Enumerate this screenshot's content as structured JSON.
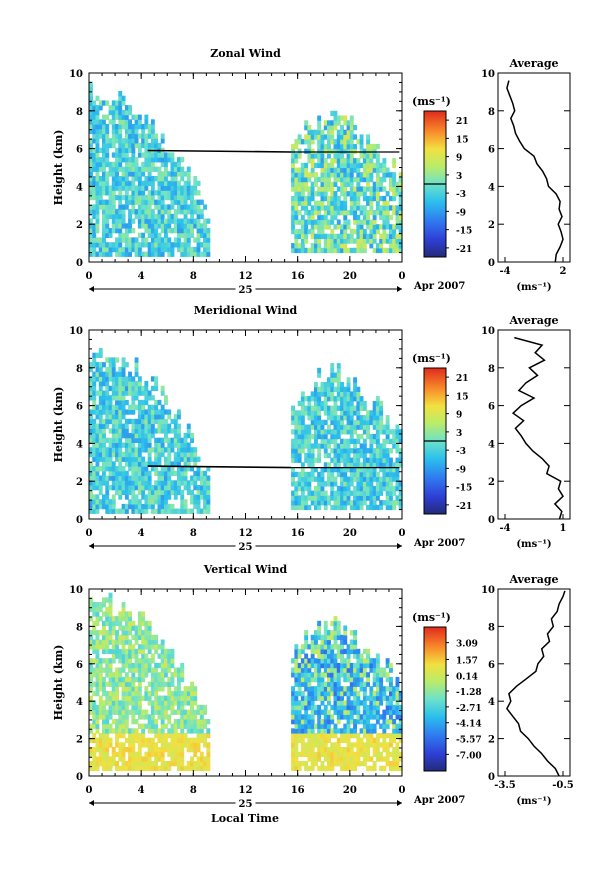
{
  "figure": {
    "xlabel": "Local Time",
    "xticks": [
      "0",
      "4",
      "8",
      "12",
      "16",
      "20",
      "0"
    ],
    "date_day": "25",
    "date_label": "Apr 2007",
    "ylabel": "Height (km)",
    "yticks": [
      "0",
      "2",
      "4",
      "6",
      "8",
      "10"
    ],
    "unit_label": "(ms⁻¹)",
    "avg_title": "Average"
  },
  "chart_data": [
    {
      "type": "heatmap",
      "title": "Zonal Wind",
      "xlabel": "Local Time",
      "ylabel": "Height (km)",
      "xlim": [
        0,
        24
      ],
      "ylim": [
        0,
        10
      ],
      "colorbar": {
        "unit": "(ms⁻¹)",
        "range": [
          -24,
          24
        ],
        "ticks": [
          "21",
          "15",
          "9",
          "3",
          "-3",
          "-9",
          "-15",
          "-21"
        ],
        "tick_values": [
          21,
          15,
          9,
          3,
          -3,
          -9,
          -15,
          -21
        ],
        "zero_line": 0
      },
      "data_segments": [
        {
          "time": [
            0,
            9.2
          ],
          "height": [
            0.3,
            9.5
          ],
          "dominant_range": [
            -9,
            3
          ]
        },
        {
          "time": [
            15.5,
            24
          ],
          "height": [
            0.5,
            8.6
          ],
          "dominant_range": [
            -9,
            9
          ]
        }
      ],
      "zero_contour_height": 5.9,
      "average_profile": {
        "xlim": [
          -4,
          2
        ],
        "xticks": [
          "-4",
          "2"
        ],
        "unit": "(ms⁻¹)",
        "height": [
          0.0,
          0.4,
          0.8,
          1.2,
          1.6,
          2.0,
          2.4,
          2.8,
          3.2,
          3.6,
          4.0,
          4.4,
          4.8,
          5.2,
          5.6,
          6.0,
          6.4,
          6.8,
          7.2,
          7.6,
          8.0,
          8.4,
          8.8,
          9.2,
          9.6
        ],
        "value": [
          1.2,
          1.3,
          1.7,
          2.0,
          1.8,
          1.5,
          1.9,
          1.6,
          1.7,
          1.3,
          0.5,
          0.3,
          -0.1,
          -0.7,
          -1.0,
          -2.0,
          -2.5,
          -2.9,
          -3.1,
          -3.4,
          -3.0,
          -3.2,
          -3.5,
          -3.8,
          -3.6
        ]
      }
    },
    {
      "type": "heatmap",
      "title": "Meridional Wind",
      "xlabel": "Local Time",
      "ylabel": "Height (km)",
      "xlim": [
        0,
        24
      ],
      "ylim": [
        0,
        10
      ],
      "colorbar": {
        "unit": "(ms⁻¹)",
        "range": [
          -24,
          24
        ],
        "ticks": [
          "21",
          "15",
          "9",
          "3",
          "-3",
          "-9",
          "-15",
          "-21"
        ],
        "tick_values": [
          21,
          15,
          9,
          3,
          -3,
          -9,
          -15,
          -21
        ],
        "zero_line": 0
      },
      "data_segments": [
        {
          "time": [
            0,
            9.2
          ],
          "height": [
            0.3,
            9.3
          ],
          "dominant_range": [
            -9,
            3
          ]
        },
        {
          "time": [
            15.5,
            24
          ],
          "height": [
            0.5,
            8.6
          ],
          "dominant_range": [
            -9,
            3
          ]
        }
      ],
      "zero_contour_height": 2.8,
      "average_profile": {
        "xlim": [
          -4,
          1
        ],
        "xticks": [
          "-4",
          "1"
        ],
        "unit": "(ms⁻¹)",
        "height": [
          0.0,
          0.4,
          0.8,
          1.2,
          1.6,
          2.0,
          2.4,
          2.8,
          3.2,
          3.6,
          4.0,
          4.4,
          4.8,
          5.2,
          5.6,
          6.0,
          6.4,
          6.8,
          7.2,
          7.6,
          8.0,
          8.4,
          8.8,
          9.2,
          9.6
        ],
        "value": [
          0.7,
          0.9,
          0.3,
          1.0,
          0.6,
          0.8,
          -0.4,
          -0.2,
          -0.8,
          -1.6,
          -2.2,
          -2.6,
          -3.1,
          -2.4,
          -3.3,
          -2.6,
          -1.5,
          -2.8,
          -2.2,
          -1.2,
          -1.9,
          -0.6,
          -1.4,
          -0.8,
          -3.2
        ]
      }
    },
    {
      "type": "heatmap",
      "title": "Vertical Wind",
      "xlabel": "Local Time",
      "ylabel": "Height (km)",
      "xlim": [
        0,
        24
      ],
      "ylim": [
        0,
        10
      ],
      "colorbar": {
        "unit": "(ms⁻¹)",
        "range": [
          -8.5,
          4.5
        ],
        "ticks": [
          "3.09",
          "1.57",
          "0.14",
          "-1.28",
          "-2.71",
          "-4.14",
          "-5.57",
          "-7.00"
        ],
        "tick_values": [
          3.09,
          1.57,
          0.14,
          -1.28,
          -2.71,
          -4.14,
          -5.57,
          -7.0
        ]
      },
      "data_segments": [
        {
          "time": [
            0,
            9.2
          ],
          "height": [
            0.3,
            9.9
          ],
          "dominant_range": [
            -2.71,
            0.14
          ]
        },
        {
          "time": [
            15.5,
            24
          ],
          "height": [
            0.3,
            8.9
          ],
          "dominant_range": [
            -5.57,
            0.14
          ]
        }
      ],
      "average_profile": {
        "xlim": [
          -3.5,
          -0.5
        ],
        "xticks": [
          "-3.5",
          "-0.5"
        ],
        "unit": "(ms⁻¹)",
        "height": [
          0.0,
          0.4,
          0.8,
          1.2,
          1.6,
          2.0,
          2.4,
          2.8,
          3.2,
          3.6,
          4.0,
          4.4,
          4.8,
          5.2,
          5.6,
          6.0,
          6.4,
          6.8,
          7.2,
          7.6,
          8.0,
          8.4,
          8.8,
          9.2,
          9.6,
          9.9
        ],
        "value": [
          -0.7,
          -0.9,
          -1.3,
          -1.6,
          -2.0,
          -2.3,
          -2.7,
          -2.8,
          -3.1,
          -3.4,
          -3.2,
          -3.3,
          -2.9,
          -2.4,
          -1.9,
          -1.8,
          -1.5,
          -1.6,
          -1.2,
          -1.3,
          -1.0,
          -1.1,
          -0.8,
          -0.7,
          -0.5,
          -0.4
        ]
      }
    }
  ]
}
